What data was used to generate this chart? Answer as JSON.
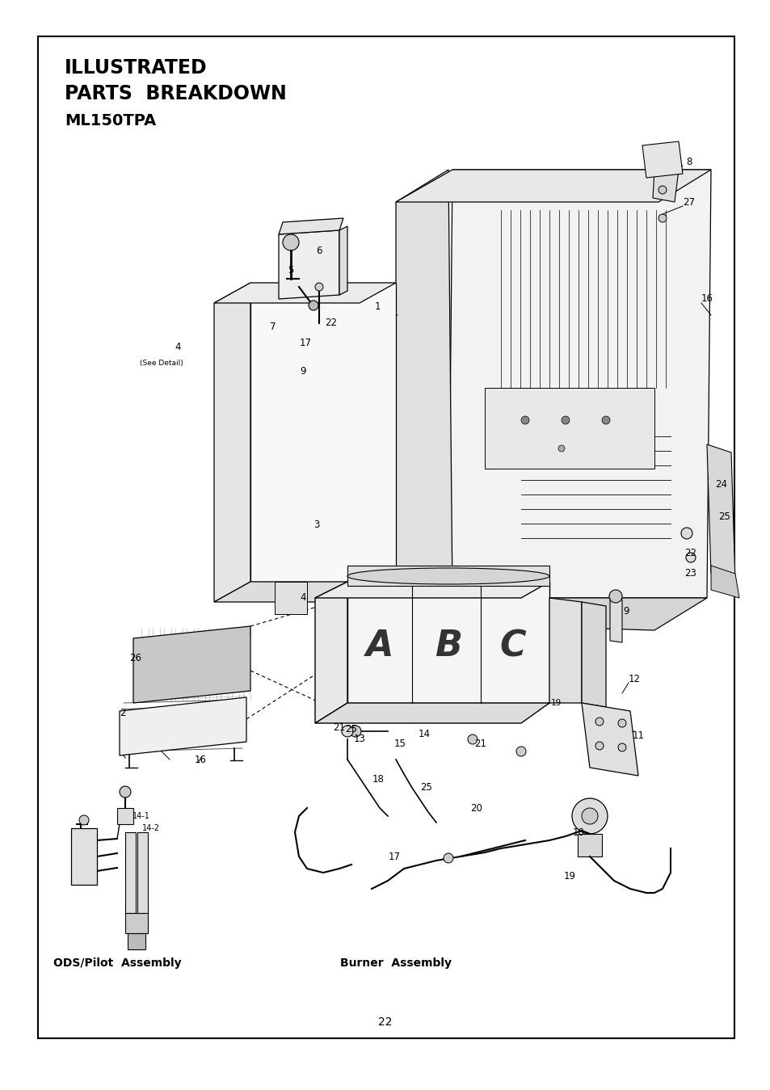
{
  "title_line1": "ILLUSTRATED",
  "title_line2": "PARTS  BREAKDOWN",
  "title_line3": "ML150TPA",
  "page_number": "22",
  "bg_color": "#ffffff",
  "text_color": "#000000",
  "border_color": "#000000",
  "ods_label": "ODS/Pilot  Assembly",
  "burner_label": "Burner  Assembly"
}
